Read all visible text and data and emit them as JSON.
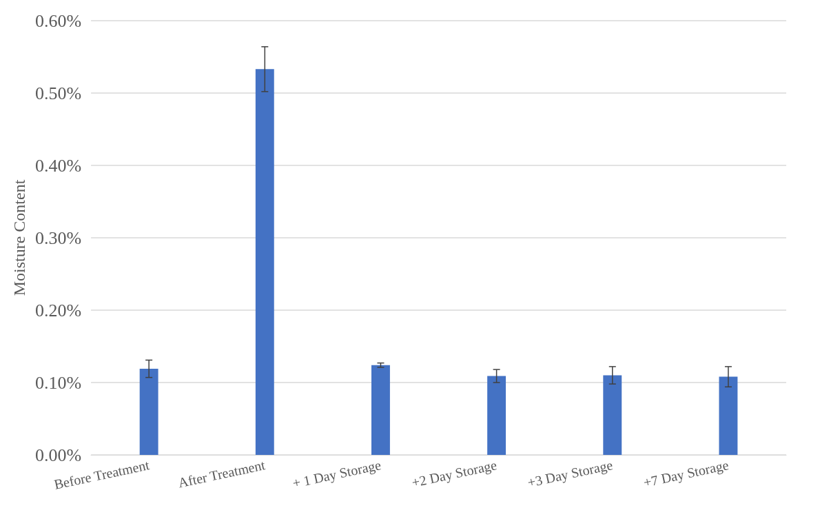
{
  "chart_data": {
    "type": "bar",
    "ylabel": "Moisture Content",
    "categories": [
      "Before Treatment",
      "After Treatment",
      "+ 1 Day Storage",
      "+2 Day Storage",
      "+3 Day Storage",
      "+7 Day Storage"
    ],
    "values": [
      0.119,
      0.533,
      0.124,
      0.109,
      0.11,
      0.108
    ],
    "errors": [
      0.012,
      0.031,
      0.003,
      0.009,
      0.012,
      0.014
    ],
    "color": "#4472c4",
    "ylim": [
      0,
      0.6
    ],
    "yticks": [
      {
        "value": 0,
        "label": "0.00%"
      },
      {
        "value": 0.1,
        "label": "0.10%"
      },
      {
        "value": 0.2,
        "label": "0.20%"
      },
      {
        "value": 0.3,
        "label": "0.30%"
      },
      {
        "value": 0.4,
        "label": "0.40%"
      },
      {
        "value": 0.5,
        "label": "0.50%"
      },
      {
        "value": 0.6,
        "label": "0.60%"
      }
    ],
    "grid": true
  }
}
